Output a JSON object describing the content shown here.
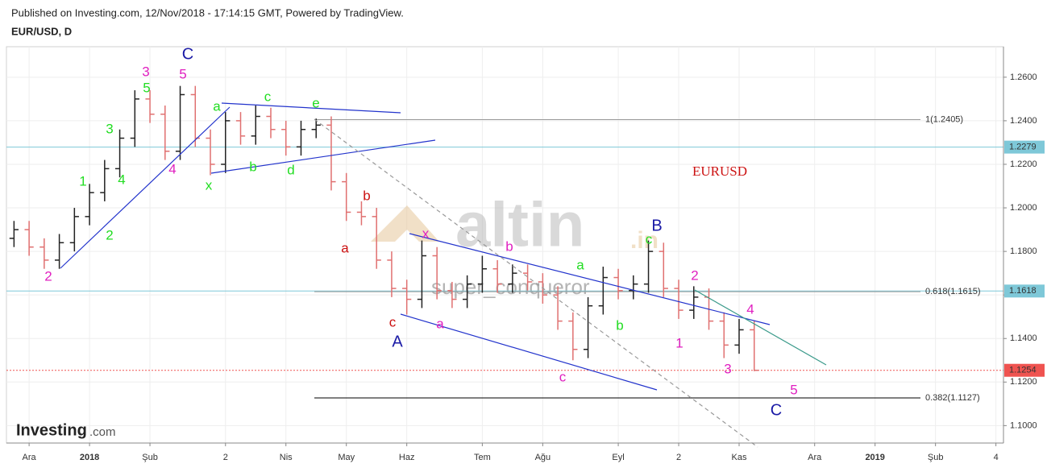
{
  "chart_data": {
    "type": "ohlc",
    "subtitle": "Published on Investing.com, 12/Nov/2018 - 17:14:15 GMT, Powered by TradingView.",
    "title": "EUR/USD, D",
    "categories": [
      null,
      "Ara",
      null,
      null,
      null,
      "2018",
      null,
      null,
      null,
      "Şub",
      null,
      null,
      null,
      null,
      "2",
      null,
      null,
      null,
      "Nis",
      null,
      null,
      null,
      "May",
      null,
      null,
      null,
      "Haz",
      null,
      null,
      null,
      null,
      "Tem",
      null,
      null,
      null,
      "Ağu",
      null,
      null,
      null,
      null,
      "Eyl",
      null,
      null,
      null,
      "2",
      null,
      null,
      null,
      "Kas",
      null,
      null,
      null,
      null,
      "Ara",
      null,
      null,
      null,
      "2019",
      null,
      null,
      null,
      "Şub",
      null,
      null,
      null,
      "4"
    ],
    "open": [
      1.186,
      1.19,
      1.182,
      1.176,
      1.184,
      1.196,
      1.207,
      1.218,
      1.232,
      1.25,
      1.243,
      1.226,
      1.252,
      1.232,
      1.22,
      1.24,
      1.233,
      1.242,
      1.236,
      1.228,
      1.236,
      1.238,
      1.212,
      1.198,
      1.196,
      1.176,
      1.163,
      1.158,
      1.178,
      1.162,
      1.158,
      1.165,
      1.172,
      1.165,
      1.17,
      1.166,
      1.16,
      1.148,
      1.135,
      1.155,
      1.168,
      1.162,
      1.165,
      1.18,
      1.163,
      1.153,
      1.159,
      1.148,
      1.137,
      1.144,
      null,
      null,
      null,
      null,
      null,
      null,
      null,
      null,
      null,
      null,
      null,
      null,
      null,
      null,
      null,
      null
    ],
    "high": [
      1.194,
      1.194,
      1.186,
      1.188,
      1.2,
      1.211,
      1.222,
      1.236,
      1.254,
      1.254,
      1.247,
      1.256,
      1.256,
      1.236,
      1.244,
      1.244,
      1.247,
      1.246,
      1.24,
      1.24,
      1.241,
      1.242,
      1.216,
      1.203,
      1.2,
      1.18,
      1.167,
      1.185,
      1.182,
      1.166,
      1.169,
      1.178,
      1.176,
      1.174,
      1.174,
      1.17,
      1.164,
      1.152,
      1.159,
      1.173,
      1.172,
      1.169,
      1.185,
      1.184,
      1.167,
      1.164,
      1.163,
      1.152,
      1.149,
      1.148,
      null,
      null,
      null,
      null,
      null,
      null,
      null,
      null,
      null,
      null,
      null,
      null,
      null,
      null,
      null,
      null
    ],
    "low": [
      1.182,
      1.178,
      1.172,
      1.172,
      1.18,
      1.192,
      1.203,
      1.214,
      1.228,
      1.239,
      1.222,
      1.222,
      1.228,
      1.215,
      1.216,
      1.229,
      1.229,
      1.232,
      1.224,
      1.224,
      1.232,
      1.208,
      1.194,
      1.192,
      1.172,
      1.159,
      1.151,
      1.154,
      1.158,
      1.154,
      1.154,
      1.161,
      1.161,
      1.161,
      1.162,
      1.156,
      1.144,
      1.13,
      1.131,
      1.151,
      1.158,
      1.158,
      1.161,
      1.159,
      1.149,
      1.149,
      1.144,
      1.131,
      1.133,
      1.125,
      null,
      null,
      null,
      null,
      null,
      null,
      null,
      null,
      null,
      null,
      null,
      null,
      null,
      null,
      null,
      null
    ],
    "close": [
      1.19,
      1.182,
      1.176,
      1.184,
      1.196,
      1.207,
      1.218,
      1.232,
      1.25,
      1.243,
      1.226,
      1.252,
      1.232,
      1.22,
      1.24,
      1.233,
      1.242,
      1.236,
      1.228,
      1.236,
      1.238,
      1.212,
      1.198,
      1.196,
      1.176,
      1.163,
      1.158,
      1.178,
      1.162,
      1.158,
      1.165,
      1.172,
      1.165,
      1.17,
      1.166,
      1.16,
      1.148,
      1.135,
      1.155,
      1.168,
      1.162,
      1.165,
      1.18,
      1.163,
      1.153,
      1.159,
      1.148,
      1.137,
      1.144,
      1.1254,
      null,
      null,
      null,
      null,
      null,
      null,
      null,
      null,
      null,
      null,
      null,
      null,
      null,
      null,
      null,
      null
    ],
    "up_color": "#222222",
    "down_color": "#e07070",
    "ylim": [
      1.092,
      1.274
    ],
    "yticks": [
      {
        "value": 1.1,
        "label": "1.1000"
      },
      {
        "value": 1.12,
        "label": "1.1200"
      },
      {
        "value": 1.14,
        "label": "1.1400"
      },
      {
        "value": 1.16,
        "label": "1.1600"
      },
      {
        "value": 1.18,
        "label": "1.1800"
      },
      {
        "value": 1.2,
        "label": "1.2000"
      },
      {
        "value": 1.22,
        "label": "1.2200"
      },
      {
        "value": 1.24,
        "label": "1.2400"
      },
      {
        "value": 1.26,
        "label": "1.2600"
      }
    ],
    "grid": true,
    "price_lines": [
      {
        "value": 1.2279,
        "color": "#7ec8d8",
        "text_color": "#222222",
        "style": "solid"
      },
      {
        "value": 1.1618,
        "color": "#7ec8d8",
        "text_color": "#222222",
        "style": "solid"
      },
      {
        "value": 1.1254,
        "color": "#ef5350",
        "text_color": "#ffffff",
        "style": "dotted"
      }
    ],
    "fib_levels": [
      {
        "value": 1.2405,
        "label": "1(1.2405)",
        "color": "#999999"
      },
      {
        "value": 1.1615,
        "label": "0.618(1.1615)",
        "color": "#999999"
      },
      {
        "value": 1.1127,
        "label": "0.382(1.1127)",
        "color": "#000000"
      }
    ],
    "annotations": [
      {
        "text": "C",
        "color": "#1a1aa6"
      },
      {
        "text": "3",
        "color": "#e020c0"
      },
      {
        "text": "5",
        "color": "#e020c0"
      },
      {
        "text": "5",
        "color": "#22dd22"
      },
      {
        "text": "3",
        "color": "#22dd22"
      },
      {
        "text": "1",
        "color": "#22dd22"
      },
      {
        "text": "4",
        "color": "#22dd22"
      },
      {
        "text": "2",
        "color": "#22dd22"
      },
      {
        "text": "2",
        "color": "#e020c0"
      },
      {
        "text": "4",
        "color": "#e020c0"
      },
      {
        "text": "a",
        "color": "#22dd22"
      },
      {
        "text": "x",
        "color": "#22dd22"
      },
      {
        "text": "c",
        "color": "#22dd22"
      },
      {
        "text": "b",
        "color": "#22dd22"
      },
      {
        "text": "e",
        "color": "#22dd22"
      },
      {
        "text": "d",
        "color": "#22dd22"
      },
      {
        "text": "b",
        "color": "#cc1111"
      },
      {
        "text": "a",
        "color": "#cc1111"
      },
      {
        "text": "c",
        "color": "#cc1111"
      },
      {
        "text": "A",
        "color": "#1a1aa6"
      },
      {
        "text": "x",
        "color": "#e020c0"
      },
      {
        "text": "a",
        "color": "#e020c0"
      },
      {
        "text": "b",
        "color": "#e020c0"
      },
      {
        "text": "c",
        "color": "#e020c0"
      },
      {
        "text": "a",
        "color": "#22dd22"
      },
      {
        "text": "b",
        "color": "#22dd22"
      },
      {
        "text": "c",
        "color": "#22dd22"
      },
      {
        "text": "B",
        "color": "#1a1aa6"
      },
      {
        "text": "2",
        "color": "#e020c0"
      },
      {
        "text": "1",
        "color": "#e020c0"
      },
      {
        "text": "4",
        "color": "#e020c0"
      },
      {
        "text": "3",
        "color": "#e020c0"
      },
      {
        "text": "5",
        "color": "#e020c0"
      },
      {
        "text": "C",
        "color": "#1a1aa6"
      }
    ],
    "symbol_note": "EURUSD"
  },
  "branding": {
    "logo": "Investing",
    "logo_suffix": ".com",
    "watermark": "altin",
    "watermark_suffix": ".in",
    "watermark_sub": "super_conqueror"
  }
}
